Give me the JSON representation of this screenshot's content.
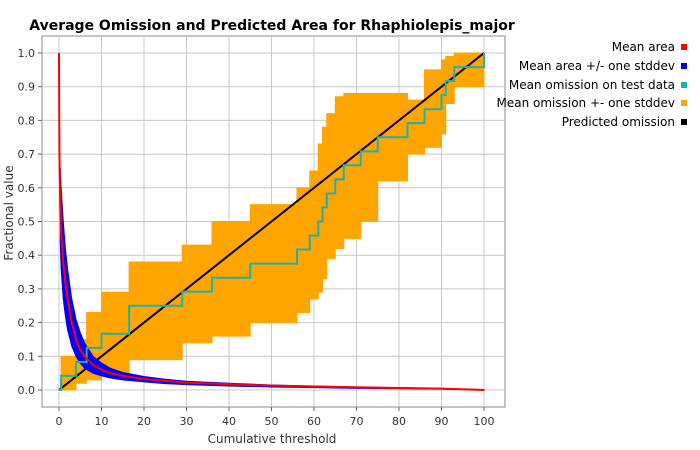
{
  "chart_data": {
    "type": "line",
    "title": "Average Omission and Predicted Area for Rhaphiolepis_major",
    "xlabel": "Cumulative threshold",
    "ylabel": "Fractional value",
    "xlim": [
      0,
      100
    ],
    "ylim": [
      0,
      1.0
    ],
    "xticks": [
      0,
      10,
      20,
      30,
      40,
      50,
      60,
      70,
      80,
      90,
      100
    ],
    "yticks": [
      0.0,
      0.1,
      0.2,
      0.3,
      0.4,
      0.5,
      0.6,
      0.7,
      0.8,
      0.9,
      1.0
    ],
    "tick_format_y": 1,
    "grid": true,
    "legend_position": "right",
    "series": [
      {
        "name": "Mean area",
        "kind": "line",
        "color": "#ff0000",
        "x": [
          0,
          0.1,
          0.3,
          0.5,
          1,
          1.5,
          2,
          3,
          4,
          5,
          6,
          8,
          10,
          12,
          15,
          20,
          25,
          30,
          40,
          50,
          60,
          70,
          80,
          90,
          100
        ],
        "y": [
          1.0,
          0.7,
          0.55,
          0.47,
          0.38,
          0.32,
          0.27,
          0.2,
          0.15,
          0.12,
          0.1,
          0.075,
          0.06,
          0.05,
          0.042,
          0.033,
          0.027,
          0.022,
          0.017,
          0.013,
          0.01,
          0.008,
          0.006,
          0.004,
          0.0
        ]
      },
      {
        "name": "Mean area +/- one stddev",
        "kind": "band",
        "color": "#0000ff",
        "x": [
          0.3,
          0.5,
          1,
          1.5,
          2,
          3,
          4,
          5,
          6,
          8,
          10,
          12,
          15,
          20,
          25,
          30,
          40,
          50,
          60,
          70,
          80,
          90,
          100
        ],
        "upper": [
          0.66,
          0.6,
          0.5,
          0.42,
          0.36,
          0.27,
          0.21,
          0.17,
          0.14,
          0.1,
          0.08,
          0.065,
          0.052,
          0.04,
          0.032,
          0.026,
          0.02,
          0.015,
          0.012,
          0.009,
          0.007,
          0.005,
          0.001
        ],
        "lower": [
          0.44,
          0.36,
          0.27,
          0.22,
          0.18,
          0.13,
          0.1,
          0.08,
          0.065,
          0.05,
          0.042,
          0.036,
          0.03,
          0.024,
          0.019,
          0.016,
          0.012,
          0.009,
          0.007,
          0.005,
          0.004,
          0.003,
          0.0
        ]
      },
      {
        "name": "Mean omission on test data",
        "kind": "line",
        "color": "#20b2aa",
        "x": [
          0,
          0.5,
          0.5,
          4,
          4,
          6.5,
          6.5,
          10,
          10,
          16.5,
          16.5,
          29,
          29,
          36,
          36,
          45,
          45,
          56,
          56,
          59,
          59,
          61,
          61,
          62,
          62,
          63,
          63,
          65,
          65,
          67,
          67,
          71,
          71,
          75,
          75,
          82,
          82,
          86,
          86,
          90,
          90,
          91,
          91,
          93,
          93,
          96,
          96,
          100,
          100
        ],
        "y": [
          0.0,
          0.0,
          0.042,
          0.042,
          0.083,
          0.083,
          0.125,
          0.125,
          0.167,
          0.167,
          0.25,
          0.25,
          0.292,
          0.292,
          0.333,
          0.333,
          0.375,
          0.375,
          0.417,
          0.417,
          0.458,
          0.458,
          0.5,
          0.5,
          0.542,
          0.542,
          0.583,
          0.583,
          0.625,
          0.625,
          0.667,
          0.667,
          0.708,
          0.708,
          0.75,
          0.75,
          0.792,
          0.792,
          0.833,
          0.833,
          0.875,
          0.875,
          0.917,
          0.917,
          0.958,
          0.958,
          0.958,
          0.958,
          1.0
        ]
      },
      {
        "name": "Mean omission +- one stddev",
        "kind": "band",
        "color": "#ffa500",
        "x": [
          0.5,
          4,
          4,
          6.5,
          6.5,
          10,
          10,
          16.5,
          16.5,
          29,
          29,
          36,
          36,
          45,
          45,
          56,
          56,
          59,
          59,
          61,
          61,
          62,
          62,
          63,
          63,
          65,
          65,
          67,
          67,
          71,
          71,
          75,
          75,
          82,
          82,
          86,
          86,
          90,
          90,
          91,
          91,
          93,
          93,
          96,
          96,
          100
        ],
        "upper": [
          0.1,
          0.1,
          0.15,
          0.15,
          0.23,
          0.23,
          0.29,
          0.29,
          0.38,
          0.38,
          0.43,
          0.43,
          0.5,
          0.5,
          0.55,
          0.55,
          0.6,
          0.6,
          0.65,
          0.65,
          0.73,
          0.73,
          0.78,
          0.78,
          0.82,
          0.82,
          0.87,
          0.87,
          0.88,
          0.88,
          0.88,
          0.88,
          0.88,
          0.88,
          0.86,
          0.86,
          0.95,
          0.95,
          0.98,
          0.98,
          0.99,
          0.99,
          1.0,
          1.0,
          1.0,
          1.0
        ],
        "lower": [
          0.0,
          0.0,
          0.02,
          0.02,
          0.03,
          0.03,
          0.05,
          0.05,
          0.09,
          0.09,
          0.14,
          0.14,
          0.16,
          0.16,
          0.2,
          0.2,
          0.23,
          0.23,
          0.27,
          0.27,
          0.29,
          0.29,
          0.33,
          0.33,
          0.39,
          0.39,
          0.42,
          0.42,
          0.45,
          0.45,
          0.5,
          0.5,
          0.62,
          0.62,
          0.7,
          0.7,
          0.72,
          0.72,
          0.76,
          0.76,
          0.85,
          0.85,
          0.9,
          0.9,
          0.9,
          0.9
        ]
      },
      {
        "name": "Predicted omission",
        "kind": "line",
        "color": "#000000",
        "x": [
          0,
          100
        ],
        "y": [
          0,
          1
        ]
      }
    ]
  }
}
